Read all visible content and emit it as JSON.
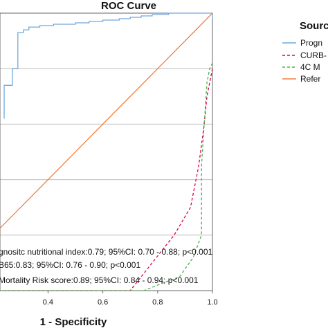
{
  "chart_data": {
    "type": "line",
    "title": "ROC Curve",
    "xlabel": "1 - Specificity",
    "ylabel": "",
    "xlim": [
      0.0,
      1.0
    ],
    "ylim": [
      0.0,
      1.0
    ],
    "x_ticks": [
      "0.4",
      "0.6",
      "0.8",
      "1.0"
    ],
    "gridlines_y": [
      0.2,
      0.4,
      0.6,
      0.8
    ],
    "grid": "horizontal",
    "legend": {
      "title": "Sourc",
      "position": "right",
      "entries": [
        "Progn",
        "CURB-",
        "4C M",
        "Refer"
      ]
    },
    "annotations": [
      "gnositc nutritional index:0.79; 95%CI: 0.70 - 0.88; p<0.001",
      "B65:0.83; 95%CI: 0.76 - 0.90; p<0.001",
      "Mortality Risk score:0.89; 95%CI: 0.84 - 0.94; p<0.001"
    ],
    "series": [
      {
        "color": "#6fa8dc",
        "dash": "solid",
        "x": [
          0.24,
          0.24,
          0.27,
          0.27,
          0.29,
          0.29,
          0.31,
          0.31,
          0.33,
          0.33,
          0.37,
          0.37,
          0.42,
          0.42,
          0.5,
          0.5,
          0.55,
          0.55,
          0.6,
          0.6,
          0.66,
          0.66,
          0.7,
          0.7,
          0.74,
          0.74,
          0.78,
          0.78,
          0.84,
          0.84,
          0.9,
          0.9,
          1.0,
          1.0
        ],
        "y": [
          0.62,
          0.74,
          0.74,
          0.8,
          0.8,
          0.93,
          0.93,
          0.94,
          0.94,
          0.95,
          0.95,
          0.955,
          0.955,
          0.96,
          0.96,
          0.965,
          0.965,
          0.97,
          0.97,
          0.975,
          0.975,
          0.98,
          0.98,
          0.985,
          0.985,
          0.99,
          0.99,
          0.995,
          0.995,
          1.0,
          1.0,
          1.0,
          1.0,
          0.98
        ]
      },
      {
        "color": "#e0004d",
        "dash": "dashed",
        "x": [
          0.2,
          0.7,
          0.78,
          0.86,
          0.92,
          0.95,
          0.97,
          0.98,
          0.99,
          1.0
        ],
        "y": [
          0.0,
          0.0,
          0.1,
          0.2,
          0.3,
          0.45,
          0.6,
          0.7,
          0.75,
          0.8
        ]
      },
      {
        "color": "#4caf50",
        "dash": "dashed",
        "x": [
          0.2,
          0.75,
          0.8,
          0.88,
          0.93,
          0.96,
          0.96,
          0.97,
          0.98,
          0.99,
          1.0
        ],
        "y": [
          0.0,
          0.0,
          0.02,
          0.05,
          0.12,
          0.2,
          0.45,
          0.6,
          0.75,
          0.8,
          0.82
        ]
      },
      {
        "color": "#f07f3c",
        "dash": "solid",
        "x": [
          0.0,
          1.0
        ],
        "y": [
          0.0,
          1.0
        ]
      }
    ],
    "series_colors": {
      "progn": "#6fa8dc",
      "curb": "#e0004d",
      "fourc": "#4caf50",
      "refer": "#f07f3c"
    }
  }
}
